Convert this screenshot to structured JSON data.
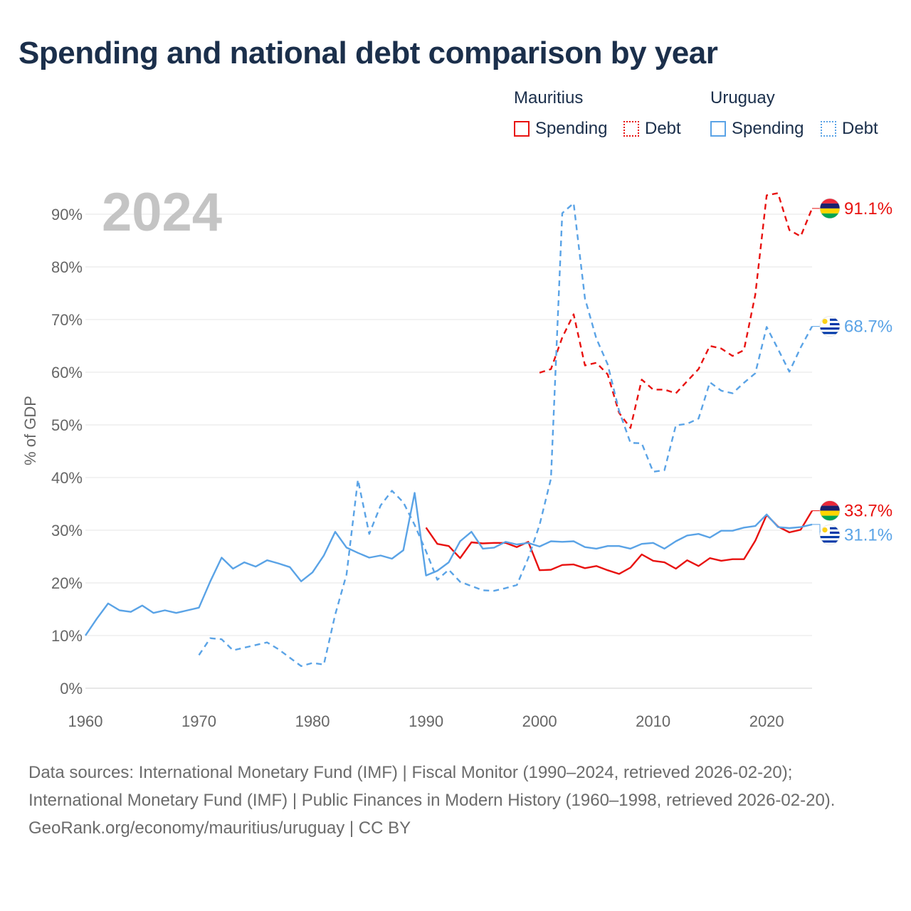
{
  "title": "Spending and national debt comparison by year",
  "legend": {
    "countries": [
      {
        "name": "Mauritius",
        "color": "#e8110f",
        "spending_label": "Spending",
        "debt_label": "Debt"
      },
      {
        "name": "Uruguay",
        "color": "#5aa3e6",
        "spending_label": "Spending",
        "debt_label": "Debt"
      }
    ]
  },
  "chart_data": {
    "type": "line",
    "year_label": "2024",
    "ylabel": "% of GDP",
    "xlim": [
      1960,
      2024
    ],
    "ylim": [
      0,
      95
    ],
    "xticks": [
      {
        "value": 1960,
        "label": "1960"
      },
      {
        "value": 1970,
        "label": "1970"
      },
      {
        "value": 1980,
        "label": "1980"
      },
      {
        "value": 1990,
        "label": "1990"
      },
      {
        "value": 2000,
        "label": "2000"
      },
      {
        "value": 2010,
        "label": "2010"
      },
      {
        "value": 2020,
        "label": "2020"
      }
    ],
    "yticks": [
      {
        "value": 0,
        "label": "0%"
      },
      {
        "value": 10,
        "label": "10%"
      },
      {
        "value": 20,
        "label": "20%"
      },
      {
        "value": 30,
        "label": "30%"
      },
      {
        "value": 40,
        "label": "40%"
      },
      {
        "value": 50,
        "label": "50%"
      },
      {
        "value": 60,
        "label": "60%"
      },
      {
        "value": 70,
        "label": "70%"
      },
      {
        "value": 80,
        "label": "80%"
      },
      {
        "value": 90,
        "label": "90%"
      }
    ],
    "series": [
      {
        "name": "Mauritius Spending",
        "country": "Mauritius",
        "kind": "spending",
        "color": "#e8110f",
        "dash": false,
        "x": [
          1990,
          1991,
          1992,
          1993,
          1994,
          1995,
          1996,
          1997,
          1998,
          1999,
          2000,
          2001,
          2002,
          2003,
          2004,
          2005,
          2006,
          2007,
          2008,
          2009,
          2010,
          2011,
          2012,
          2013,
          2014,
          2015,
          2016,
          2017,
          2018,
          2019,
          2020,
          2021,
          2022,
          2023,
          2024
        ],
        "values": [
          30.5,
          27.4,
          27.0,
          24.7,
          27.7,
          27.5,
          27.6,
          27.6,
          26.8,
          27.8,
          22.4,
          22.5,
          23.4,
          23.5,
          22.8,
          23.2,
          22.4,
          21.7,
          22.9,
          25.4,
          24.2,
          23.9,
          22.7,
          24.3,
          23.2,
          24.7,
          24.2,
          24.5,
          24.5,
          28.0,
          32.9,
          30.7,
          29.6,
          30.1,
          33.7
        ],
        "end_label": "33.7%"
      },
      {
        "name": "Mauritius Debt",
        "country": "Mauritius",
        "kind": "debt",
        "color": "#e8110f",
        "dash": true,
        "x": [
          2000,
          2001,
          2002,
          2003,
          2004,
          2005,
          2006,
          2007,
          2008,
          2009,
          2010,
          2011,
          2012,
          2013,
          2014,
          2015,
          2016,
          2017,
          2018,
          2019,
          2020,
          2021,
          2022,
          2023,
          2024
        ],
        "values": [
          59.9,
          60.6,
          66.6,
          71.0,
          61.3,
          61.8,
          59.6,
          52.3,
          49.4,
          58.6,
          56.7,
          56.7,
          56.0,
          58.3,
          60.6,
          65.0,
          64.5,
          63.1,
          64.2,
          74.7,
          93.6,
          94.0,
          87.0,
          85.8,
          91.1
        ],
        "end_label": "91.1%"
      },
      {
        "name": "Uruguay Spending",
        "country": "Uruguay",
        "kind": "spending",
        "color": "#5aa3e6",
        "dash": false,
        "x": [
          1960,
          1961,
          1962,
          1963,
          1964,
          1965,
          1966,
          1967,
          1968,
          1969,
          1970,
          1971,
          1972,
          1973,
          1974,
          1975,
          1976,
          1977,
          1978,
          1979,
          1980,
          1981,
          1982,
          1983,
          1984,
          1985,
          1986,
          1987,
          1988,
          1989,
          1990,
          1991,
          1992,
          1993,
          1994,
          1995,
          1996,
          1997,
          1998,
          1999,
          2000,
          2001,
          2002,
          2003,
          2004,
          2005,
          2006,
          2007,
          2008,
          2009,
          2010,
          2011,
          2012,
          2013,
          2014,
          2015,
          2016,
          2017,
          2018,
          2019,
          2020,
          2021,
          2022,
          2023,
          2024
        ],
        "values": [
          10.0,
          13.2,
          16.1,
          14.8,
          14.5,
          15.7,
          14.3,
          14.8,
          14.3,
          14.8,
          15.3,
          20.3,
          24.8,
          22.7,
          23.9,
          23.1,
          24.3,
          23.7,
          23.0,
          20.3,
          22.0,
          25.2,
          29.7,
          26.7,
          25.7,
          24.8,
          25.2,
          24.6,
          26.2,
          37.1,
          21.4,
          22.3,
          23.9,
          27.9,
          29.7,
          26.5,
          26.7,
          27.8,
          27.3,
          27.6,
          26.9,
          27.9,
          27.8,
          27.9,
          26.8,
          26.5,
          27.0,
          27.0,
          26.5,
          27.4,
          27.6,
          26.5,
          27.9,
          29.0,
          29.3,
          28.6,
          29.9,
          29.9,
          30.5,
          30.8,
          33.0,
          30.6,
          30.4,
          30.6,
          31.1
        ],
        "end_label": "31.1%"
      },
      {
        "name": "Uruguay Debt",
        "country": "Uruguay",
        "kind": "debt",
        "color": "#5aa3e6",
        "dash": true,
        "x": [
          1970,
          1971,
          1972,
          1973,
          1974,
          1975,
          1976,
          1977,
          1978,
          1979,
          1980,
          1981,
          1982,
          1983,
          1984,
          1985,
          1986,
          1987,
          1988,
          1989,
          1990,
          1991,
          1992,
          1993,
          1994,
          1995,
          1996,
          1997,
          1998,
          1999,
          2000,
          2001,
          2002,
          2003,
          2004,
          2005,
          2006,
          2007,
          2008,
          2009,
          2010,
          2011,
          2012,
          2013,
          2014,
          2015,
          2016,
          2017,
          2018,
          2019,
          2020,
          2021,
          2022,
          2023,
          2024
        ],
        "values": [
          6.3,
          9.5,
          9.3,
          7.2,
          7.7,
          8.2,
          8.7,
          7.4,
          5.8,
          4.2,
          4.8,
          4.5,
          14.0,
          21.6,
          39.6,
          29.3,
          34.7,
          37.5,
          35.3,
          31.0,
          26.0,
          20.6,
          22.5,
          20.2,
          19.4,
          18.6,
          18.5,
          19.0,
          19.6,
          24.7,
          31.0,
          39.8,
          90.2,
          92.1,
          74.0,
          66.4,
          61.5,
          52.7,
          46.6,
          46.5,
          41.1,
          41.4,
          49.9,
          50.2,
          51.2,
          58.1,
          56.5,
          56.0,
          58.0,
          59.8,
          68.6,
          64.4,
          60.1,
          64.7,
          68.7
        ],
        "end_label": "68.7%"
      }
    ]
  },
  "footer": {
    "sources": "Data sources: International Monetary Fund (IMF) | Fiscal Monitor (1990–2024, retrieved 2026-02-20); International Monetary Fund (IMF) | Public Finances in Modern History (1960–1998, retrieved 2026-02-20).",
    "attribution": "GeoRank.org/economy/mauritius/uruguay | CC BY"
  }
}
